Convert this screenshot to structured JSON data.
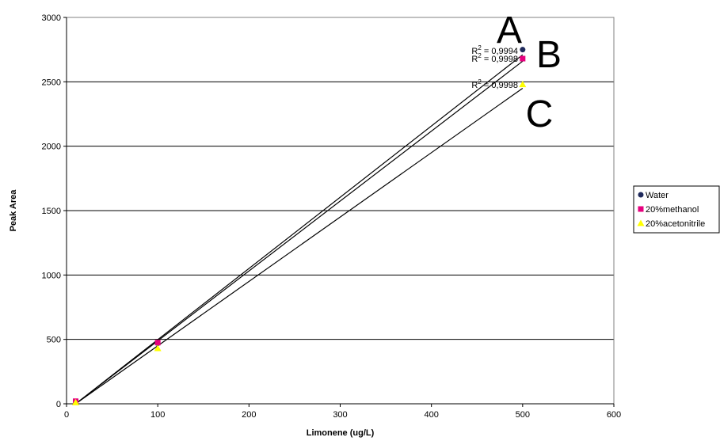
{
  "chart_data": {
    "type": "scatter",
    "xlabel": "Limonene (ug/L)",
    "ylabel": "Peak Area",
    "xlim": [
      0,
      600
    ],
    "ylim": [
      0,
      3000
    ],
    "x_ticks": [
      "0",
      "100",
      "200",
      "300",
      "400",
      "500",
      "600"
    ],
    "y_ticks": [
      "0",
      "500",
      "1000",
      "1500",
      "2000",
      "2500",
      "3000"
    ],
    "grid": "horizontal",
    "legend_position": "right",
    "series": [
      {
        "name": "Water",
        "marker": "circle",
        "color": "#1f2a5c",
        "x": [
          10,
          100,
          500
        ],
        "y": [
          15,
          470,
          2750
        ],
        "trendline": [
          [
            10,
            0
          ],
          [
            500,
            2710
          ]
        ],
        "r2": "R² = 0,9994",
        "r2_base": "R",
        "r2_sup": "2",
        "r2_value": " = 0,9994",
        "curve_label": "A"
      },
      {
        "name": "20%methanol",
        "marker": "square",
        "color": "#e6007e",
        "x": [
          10,
          100,
          500
        ],
        "y": [
          20,
          475,
          2680
        ],
        "trendline": [
          [
            10,
            0
          ],
          [
            500,
            2660
          ]
        ],
        "r2": "R² = 0,9998",
        "r2_base": "R",
        "r2_sup": "2",
        "r2_value": " = 0,9998",
        "curve_label": "B"
      },
      {
        "name": "20%acetonitrile",
        "marker": "triangle",
        "color": "#ffff00",
        "x": [
          10,
          100,
          500
        ],
        "y": [
          10,
          430,
          2480
        ],
        "trendline": [
          [
            10,
            0
          ],
          [
            500,
            2450
          ]
        ],
        "r2": "R² = 0,9998",
        "r2_base": "R",
        "r2_sup": "2",
        "r2_value": " = 0,9998",
        "curve_label": "C"
      }
    ]
  }
}
